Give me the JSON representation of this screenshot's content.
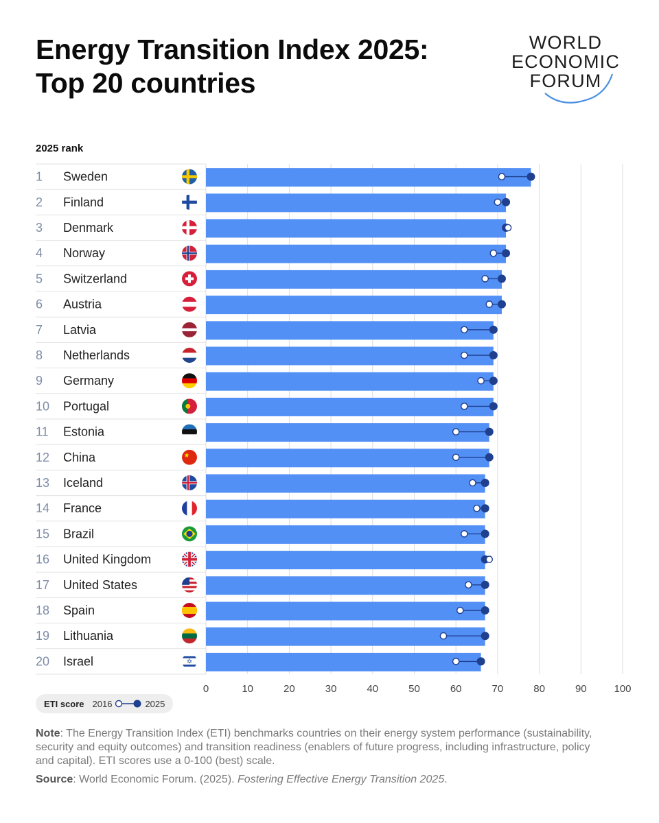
{
  "header": {
    "title_line1": "Energy Transition Index 2025:",
    "title_line2": "Top 20 countries"
  },
  "logo": {
    "line1": "WORLD",
    "line2": "ECONOMIC",
    "line3": "FORUM",
    "accent_color": "#4a90e2"
  },
  "chart_data": {
    "type": "bar",
    "rank_header": "2025 rank",
    "xlim": [
      0,
      100
    ],
    "xticks": [
      "0",
      "10",
      "20",
      "30",
      "40",
      "50",
      "60",
      "70",
      "80",
      "90",
      "100"
    ],
    "bar_color": "#5390f5",
    "dot_color_2025": "#1f3f8f",
    "grid": true,
    "rows": [
      {
        "rank": "1",
        "country": "Sweden",
        "flag": "sweden-flag-icon",
        "score_2025": 78,
        "score_2016": 71
      },
      {
        "rank": "2",
        "country": "Finland",
        "flag": "finland-flag-icon",
        "score_2025": 72,
        "score_2016": 70
      },
      {
        "rank": "3",
        "country": "Denmark",
        "flag": "denmark-flag-icon",
        "score_2025": 72,
        "score_2016": 72.5
      },
      {
        "rank": "4",
        "country": "Norway",
        "flag": "norway-flag-icon",
        "score_2025": 72,
        "score_2016": 69
      },
      {
        "rank": "5",
        "country": "Switzerland",
        "flag": "switzerland-flag-icon",
        "score_2025": 71,
        "score_2016": 67
      },
      {
        "rank": "6",
        "country": "Austria",
        "flag": "austria-flag-icon",
        "score_2025": 71,
        "score_2016": 68
      },
      {
        "rank": "7",
        "country": "Latvia",
        "flag": "latvia-flag-icon",
        "score_2025": 69,
        "score_2016": 62
      },
      {
        "rank": "8",
        "country": "Netherlands",
        "flag": "netherlands-flag-icon",
        "score_2025": 69,
        "score_2016": 62
      },
      {
        "rank": "9",
        "country": "Germany",
        "flag": "germany-flag-icon",
        "score_2025": 69,
        "score_2016": 66
      },
      {
        "rank": "10",
        "country": "Portugal",
        "flag": "portugal-flag-icon",
        "score_2025": 69,
        "score_2016": 62
      },
      {
        "rank": "11",
        "country": "Estonia",
        "flag": "estonia-flag-icon",
        "score_2025": 68,
        "score_2016": 60
      },
      {
        "rank": "12",
        "country": "China",
        "flag": "china-flag-icon",
        "score_2025": 68,
        "score_2016": 60
      },
      {
        "rank": "13",
        "country": "Iceland",
        "flag": "iceland-flag-icon",
        "score_2025": 67,
        "score_2016": 64
      },
      {
        "rank": "14",
        "country": "France",
        "flag": "france-flag-icon",
        "score_2025": 67,
        "score_2016": 65
      },
      {
        "rank": "15",
        "country": "Brazil",
        "flag": "brazil-flag-icon",
        "score_2025": 67,
        "score_2016": 62
      },
      {
        "rank": "16",
        "country": "United Kingdom",
        "flag": "united-kingdom-flag-icon",
        "score_2025": 67,
        "score_2016": 68
      },
      {
        "rank": "17",
        "country": "United States",
        "flag": "united-states-flag-icon",
        "score_2025": 67,
        "score_2016": 63
      },
      {
        "rank": "18",
        "country": "Spain",
        "flag": "spain-flag-icon",
        "score_2025": 67,
        "score_2016": 61
      },
      {
        "rank": "19",
        "country": "Lithuania",
        "flag": "lithuania-flag-icon",
        "score_2025": 67,
        "score_2016": 57
      },
      {
        "rank": "20",
        "country": "Israel",
        "flag": "israel-flag-icon",
        "score_2025": 66,
        "score_2016": 60
      }
    ]
  },
  "legend": {
    "title": "ETI score",
    "label_2016": "2016",
    "label_2025": "2025"
  },
  "footer": {
    "note_label": "Note",
    "note_text": ": The Energy Transition Index (ETI) benchmarks countries on their energy system performance (sustainability, security and equity outcomes) and transition readiness (enablers of future progress, including infrastructure, policy and capital). ETI scores use a 0-100 (best) scale.",
    "source_label": "Source",
    "source_text": ": World Economic Forum. (2025). ",
    "source_title": "Fostering Effective Energy Transition 2025",
    "source_end": "."
  }
}
